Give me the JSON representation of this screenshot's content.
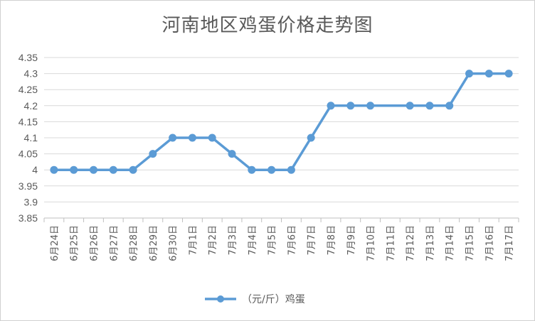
{
  "chart_data": {
    "type": "line",
    "title": "河南地区鸡蛋价格走势图",
    "categories": [
      "6月24日",
      "6月25日",
      "6月26日",
      "6月27日",
      "6月28日",
      "6月29日",
      "6月30日",
      "7月1日",
      "7月2日",
      "7月3日",
      "7月4日",
      "7月5日",
      "7月6日",
      "7月7日",
      "7月8日",
      "7月9日",
      "7月10日",
      "7月11日",
      "7月12日",
      "7月13日",
      "7月14日",
      "7月15日",
      "7月16日",
      "7月17日"
    ],
    "series": [
      {
        "name": "（元/斤）鸡蛋",
        "values": [
          4.0,
          4.0,
          4.0,
          4.0,
          4.0,
          4.05,
          4.1,
          4.1,
          4.1,
          4.05,
          4.0,
          4.0,
          4.0,
          4.1,
          4.2,
          4.2,
          4.2,
          null,
          4.2,
          4.2,
          4.2,
          4.3,
          4.3,
          4.3
        ],
        "color": "#5b9bd5"
      }
    ],
    "ylim": [
      3.85,
      4.35
    ],
    "yticks": [
      "4.35",
      "4.3",
      "4.25",
      "4.2",
      "4.15",
      "4.1",
      "4.05",
      "4",
      "3.95",
      "3.9",
      "3.85"
    ],
    "xlabel": "",
    "ylabel": "",
    "grid": true,
    "legend": "bottom"
  }
}
